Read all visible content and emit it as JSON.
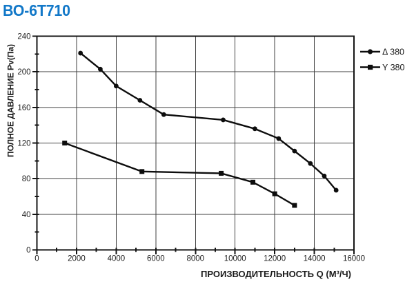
{
  "header": {
    "title": "ВО-6Т710",
    "title_color": "#1278c8"
  },
  "chart_data": {
    "type": "line",
    "title": "ВО-6Т710",
    "xlabel": "ПРОИЗВОДИТЕЛЬНОСТЬ Q (М³/Ч)",
    "ylabel": "ПОЛНОЕ ДАВЛЕНИЕ Pv(Па)",
    "xlim": [
      0,
      16000
    ],
    "ylim": [
      0,
      240
    ],
    "x_major_step": 2000,
    "x_minor_step": 1000,
    "y_major_step": 40,
    "y_minor_step": 20,
    "x_tick_labels": [
      "0",
      "2000",
      "4000",
      "6000",
      "8000",
      "10000",
      "12000",
      "14000",
      "16000"
    ],
    "y_tick_labels": [
      "0",
      "40",
      "80",
      "120",
      "160",
      "200",
      "240"
    ],
    "grid": true,
    "legend_position": "top-right-outside",
    "line_color": "#0d0d0d",
    "grid_color": "#3f3f3f",
    "border_color": "#141414",
    "text_color": "#1a1a1a",
    "series": [
      {
        "name": "Δ 380",
        "marker": "circle",
        "points": [
          [
            2200,
            221
          ],
          [
            3200,
            203
          ],
          [
            4000,
            184
          ],
          [
            5200,
            168
          ],
          [
            6400,
            152
          ],
          [
            9400,
            146
          ],
          [
            11000,
            136
          ],
          [
            12200,
            125
          ],
          [
            13000,
            111
          ],
          [
            13800,
            97
          ],
          [
            14500,
            83
          ],
          [
            15100,
            67
          ]
        ]
      },
      {
        "name": "Y 380",
        "marker": "square",
        "points": [
          [
            1400,
            120
          ],
          [
            5300,
            88
          ],
          [
            9300,
            86
          ],
          [
            10900,
            76
          ],
          [
            12000,
            63
          ],
          [
            13000,
            50
          ]
        ]
      }
    ]
  }
}
